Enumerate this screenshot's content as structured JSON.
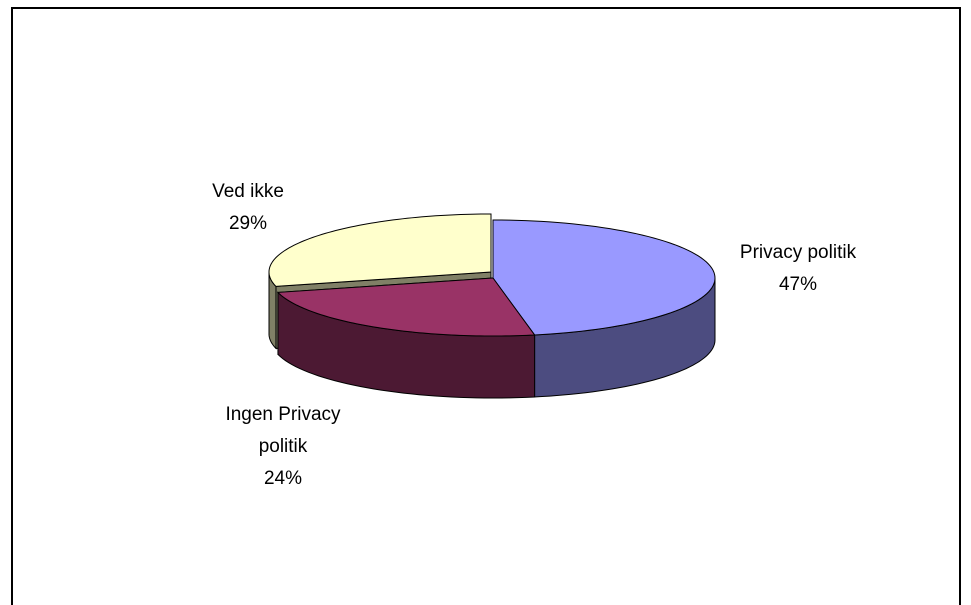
{
  "chart_data": {
    "type": "pie",
    "title": "",
    "style": "3d-exploded",
    "slices": [
      {
        "label_lines": [
          "Privacy politik"
        ],
        "percent_label": "47%",
        "value": 47,
        "top_color": "#9999ff",
        "side_color": "#4c4c80",
        "label_pos": "right"
      },
      {
        "label_lines": [
          "Ingen Privacy",
          "politik"
        ],
        "percent_label": "24%",
        "value": 24,
        "top_color": "#993366",
        "side_color": "#4c1933",
        "label_pos": "bottom-left"
      },
      {
        "label_lines": [
          "Ved ikke"
        ],
        "percent_label": "29%",
        "value": 29,
        "top_color": "#ffffcc",
        "side_color": "#808066",
        "label_pos": "top-left"
      }
    ]
  }
}
